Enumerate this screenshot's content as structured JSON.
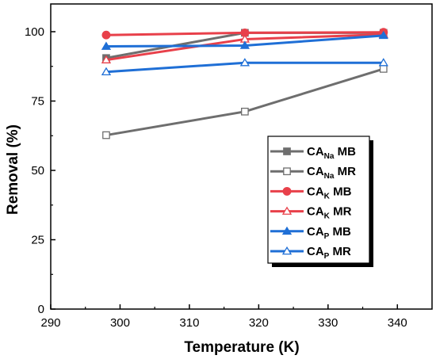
{
  "chart_data": {
    "type": "line",
    "title": "",
    "xlabel": "Temperature (K)",
    "ylabel": "Removal (%)",
    "xlim": [
      290,
      345
    ],
    "ylim": [
      0,
      110
    ],
    "xticks": [
      290,
      300,
      310,
      320,
      330,
      340
    ],
    "yticks": [
      0,
      25,
      50,
      75,
      100
    ],
    "grid": false,
    "legend_position": "bottom-right",
    "x": [
      298,
      318,
      338
    ],
    "series": [
      {
        "name": "CA",
        "sub": "Na",
        "suffix": " MB",
        "color": "#6e6e6e",
        "marker": "square",
        "filled": true,
        "values": [
          90.5,
          99.6,
          99.6
        ]
      },
      {
        "name": "CA",
        "sub": "Na",
        "suffix": " MR",
        "color": "#6e6e6e",
        "marker": "square",
        "filled": false,
        "values": [
          62.7,
          71.2,
          86.6
        ]
      },
      {
        "name": "CA",
        "sub": "K",
        "suffix": " MB",
        "color": "#e8404a",
        "marker": "circle",
        "filled": true,
        "values": [
          98.8,
          99.6,
          99.8
        ]
      },
      {
        "name": "CA",
        "sub": "K",
        "suffix": " MR",
        "color": "#e8404a",
        "marker": "triangle",
        "filled": false,
        "values": [
          89.8,
          97.3,
          99.0
        ]
      },
      {
        "name": "CA",
        "sub": "P",
        "suffix": " MB",
        "color": "#1f6fd6",
        "marker": "triangle",
        "filled": true,
        "values": [
          94.7,
          95.0,
          98.6
        ]
      },
      {
        "name": "CA",
        "sub": "P",
        "suffix": " MR",
        "color": "#1f6fd6",
        "marker": "triangle",
        "filled": false,
        "values": [
          85.5,
          88.8,
          88.8
        ]
      }
    ]
  }
}
